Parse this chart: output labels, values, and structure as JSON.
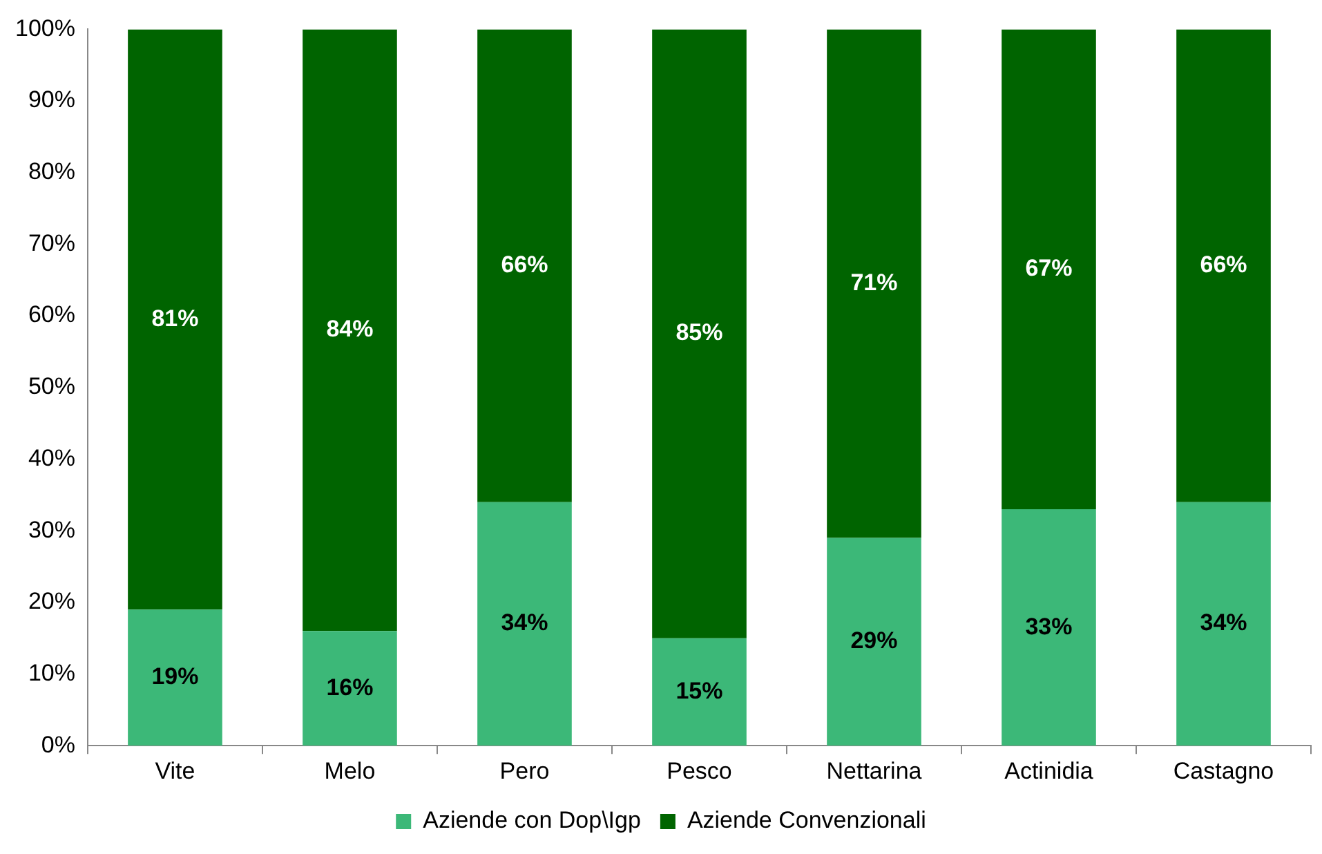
{
  "chart_data": {
    "type": "bar",
    "stacked": true,
    "categories": [
      "Vite",
      "Melo",
      "Pero",
      "Pesco",
      "Nettarina",
      "Actinidia",
      "Castagno"
    ],
    "series": [
      {
        "name": "Aziende con Dop\\Igp",
        "color": "#3cb878",
        "values": [
          19,
          16,
          34,
          15,
          29,
          33,
          34
        ],
        "value_labels": [
          "19%",
          "16%",
          "34%",
          "15%",
          "29%",
          "33%",
          "34%"
        ]
      },
      {
        "name": "Aziende Convenzionali",
        "color": "#006400",
        "values": [
          81,
          84,
          66,
          85,
          71,
          67,
          66
        ],
        "value_labels": [
          "81%",
          "84%",
          "66%",
          "85%",
          "71%",
          "67%",
          "66%"
        ]
      }
    ],
    "ylim": [
      0,
      100
    ],
    "yticks": [
      {
        "value": 0,
        "label": "0%"
      },
      {
        "value": 10,
        "label": "10%"
      },
      {
        "value": 20,
        "label": "20%"
      },
      {
        "value": 30,
        "label": "30%"
      },
      {
        "value": 40,
        "label": "40%"
      },
      {
        "value": 50,
        "label": "50%"
      },
      {
        "value": 60,
        "label": "60%"
      },
      {
        "value": 70,
        "label": "70%"
      },
      {
        "value": 80,
        "label": "80%"
      },
      {
        "value": 90,
        "label": "90%"
      },
      {
        "value": 100,
        "label": "100%"
      }
    ],
    "grid": false,
    "legend": "bottom"
  }
}
